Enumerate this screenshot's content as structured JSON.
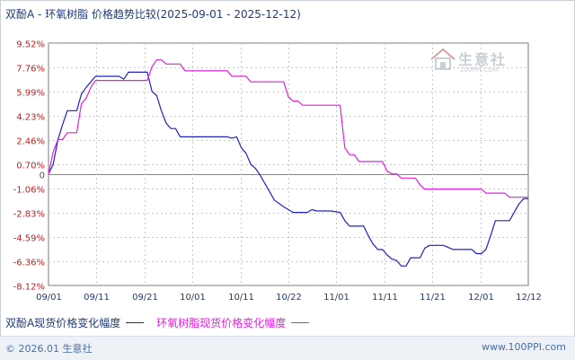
{
  "title": "双酚A - 环氧树脂 价格趋势比较(2025-09-01 - 2025-12-12)",
  "watermark": {
    "name": "生意社",
    "url": "100PPI.COM"
  },
  "footer": {
    "copyright": "© 2026.01 生意社",
    "site": "www.100PPI.com"
  },
  "colors": {
    "series1": "#2020c8",
    "series2": "#e020e0",
    "grid": "#c8c8c8",
    "axis": "#7a7a7a",
    "label": "#c02020",
    "date": "#1f3a7a"
  },
  "chart_data": {
    "type": "line",
    "title": "双酚A - 环氧树脂 价格趋势比较(2025-09-01 - 2025-12-12)",
    "xlabel": "",
    "ylabel": "",
    "y_ticks": [
      "9.52%",
      "7.76%",
      "5.99%",
      "4.23%",
      "2.46%",
      "0.70%",
      "0",
      "-1.06%",
      "-2.83%",
      "-4.59%",
      "-6.36%",
      "-8.12%"
    ],
    "ylim": [
      -8.12,
      9.52
    ],
    "x_ticks": [
      "09/01",
      "09/11",
      "09/21",
      "10/01",
      "10/11",
      "10/22",
      "11/01",
      "11/11",
      "11/21",
      "12/01",
      "12/12"
    ],
    "grid": true,
    "legend_position": "bottom-left",
    "series": [
      {
        "name": "双酚A现货价格变化幅度",
        "points": [
          [
            0,
            0
          ],
          [
            1,
            0.7
          ],
          [
            2,
            2.5
          ],
          [
            3,
            3.6
          ],
          [
            4,
            4.6
          ],
          [
            6,
            4.6
          ],
          [
            7,
            5.8
          ],
          [
            8,
            6.3
          ],
          [
            10,
            7.1
          ],
          [
            15,
            7.1
          ],
          [
            16,
            6.9
          ],
          [
            17,
            7.4
          ],
          [
            21,
            7.4
          ],
          [
            22,
            6.0
          ],
          [
            23,
            5.7
          ],
          [
            24,
            4.6
          ],
          [
            25,
            3.7
          ],
          [
            26,
            3.3
          ],
          [
            27,
            3.3
          ],
          [
            28,
            2.7
          ],
          [
            38,
            2.7
          ],
          [
            39,
            2.6
          ],
          [
            40,
            2.7
          ],
          [
            41,
            1.9
          ],
          [
            42,
            1.5
          ],
          [
            43,
            0.7
          ],
          [
            44,
            0.4
          ],
          [
            45,
            -0.1
          ],
          [
            46,
            -0.7
          ],
          [
            47,
            -1.3
          ],
          [
            48,
            -1.9
          ],
          [
            50,
            -2.4
          ],
          [
            52,
            -2.8
          ],
          [
            55,
            -2.8
          ],
          [
            56,
            -2.6
          ],
          [
            57,
            -2.7
          ],
          [
            60,
            -2.7
          ],
          [
            62,
            -2.8
          ],
          [
            63,
            -3.4
          ],
          [
            64,
            -3.8
          ],
          [
            67,
            -3.8
          ],
          [
            68,
            -4.5
          ],
          [
            69,
            -5.1
          ],
          [
            70,
            -5.5
          ],
          [
            71,
            -5.5
          ],
          [
            72,
            -5.9
          ],
          [
            73,
            -6.2
          ],
          [
            74,
            -6.3
          ],
          [
            75,
            -6.7
          ],
          [
            76,
            -6.7
          ],
          [
            77,
            -6.1
          ],
          [
            79,
            -6.1
          ],
          [
            80,
            -5.4
          ],
          [
            81,
            -5.2
          ],
          [
            84,
            -5.2
          ],
          [
            86,
            -5.5
          ],
          [
            90,
            -5.5
          ],
          [
            91,
            -5.8
          ],
          [
            92,
            -5.8
          ],
          [
            93,
            -5.5
          ],
          [
            94,
            -4.5
          ],
          [
            95,
            -3.4
          ],
          [
            98,
            -3.4
          ],
          [
            99,
            -2.8
          ],
          [
            100,
            -2.2
          ],
          [
            101,
            -1.8
          ],
          [
            102,
            -1.8
          ]
        ]
      },
      {
        "name": "环氧树脂现货价格变化幅度",
        "points": [
          [
            0,
            0
          ],
          [
            1,
            1.6
          ],
          [
            2,
            2.5
          ],
          [
            3,
            2.5
          ],
          [
            4,
            3.0
          ],
          [
            6,
            3.0
          ],
          [
            7,
            5.1
          ],
          [
            8,
            5.5
          ],
          [
            9,
            6.3
          ],
          [
            10,
            6.8
          ],
          [
            20,
            6.8
          ],
          [
            21,
            6.8
          ],
          [
            22,
            7.8
          ],
          [
            23,
            8.3
          ],
          [
            24,
            8.3
          ],
          [
            25,
            8.0
          ],
          [
            28,
            8.0
          ],
          [
            29,
            7.5
          ],
          [
            38,
            7.5
          ],
          [
            39,
            7.1
          ],
          [
            42,
            7.1
          ],
          [
            43,
            6.7
          ],
          [
            50,
            6.7
          ],
          [
            51,
            5.6
          ],
          [
            52,
            5.3
          ],
          [
            53,
            5.3
          ],
          [
            54,
            5.0
          ],
          [
            62,
            5.0
          ],
          [
            63,
            1.9
          ],
          [
            64,
            1.4
          ],
          [
            65,
            1.4
          ],
          [
            66,
            0.9
          ],
          [
            71,
            0.9
          ],
          [
            72,
            0.2
          ],
          [
            73,
            0.0
          ],
          [
            74,
            0.0
          ],
          [
            75,
            -0.3
          ],
          [
            78,
            -0.3
          ],
          [
            79,
            -0.8
          ],
          [
            80,
            -1.1
          ],
          [
            92,
            -1.1
          ],
          [
            93,
            -1.4
          ],
          [
            97,
            -1.4
          ],
          [
            98,
            -1.7
          ],
          [
            102,
            -1.7
          ]
        ]
      }
    ]
  }
}
